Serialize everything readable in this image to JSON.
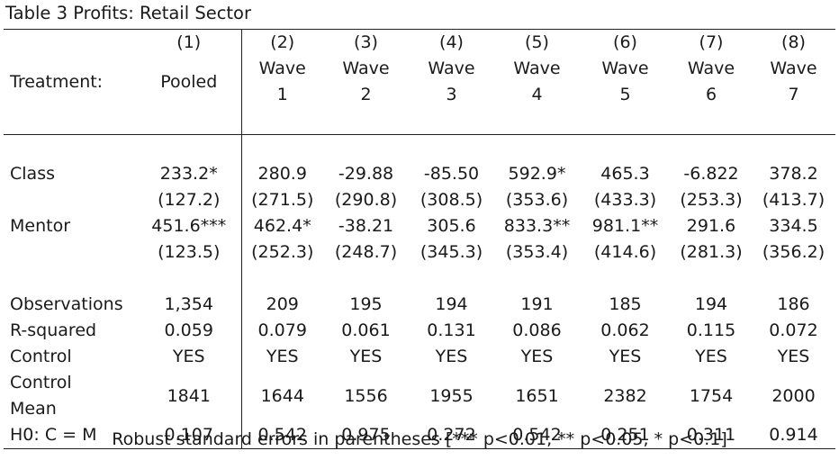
{
  "title": "Table 3 Profits: Retail Sector",
  "column_numbers": [
    "(1)",
    "(2)",
    "(3)",
    "(4)",
    "(5)",
    "(6)",
    "(7)",
    "(8)"
  ],
  "treatment_label": "Treatment:",
  "column_names_line1": [
    "",
    "Wave",
    "Wave",
    "Wave",
    "Wave",
    "Wave",
    "Wave",
    "Wave"
  ],
  "column_names_line2": [
    "Pooled",
    "1",
    "2",
    "3",
    "4",
    "5",
    "6",
    "7"
  ],
  "rows": {
    "class": {
      "label": "Class",
      "coef": [
        "233.2*",
        "280.9",
        "-29.88",
        "-85.50",
        "592.9*",
        "465.3",
        "-6.822",
        "378.2"
      ],
      "se": [
        "(127.2)",
        "(271.5)",
        "(290.8)",
        "(308.5)",
        "(353.6)",
        "(433.3)",
        "(253.3)",
        "(413.7)"
      ]
    },
    "mentor": {
      "label": "Mentor",
      "coef": [
        "451.6***",
        "462.4*",
        "-38.21",
        "305.6",
        "833.3**",
        "981.1**",
        "291.6",
        "334.5"
      ],
      "se": [
        "(123.5)",
        "(252.3)",
        "(248.7)",
        "(345.3)",
        "(353.4)",
        "(414.6)",
        "(281.3)",
        "(356.2)"
      ]
    },
    "observations": {
      "label": "Observations",
      "values": [
        "1,354",
        "209",
        "195",
        "194",
        "191",
        "185",
        "194",
        "186"
      ]
    },
    "r_squared": {
      "label": "R-squared",
      "values": [
        "0.059",
        "0.079",
        "0.061",
        "0.131",
        "0.086",
        "0.062",
        "0.115",
        "0.072"
      ]
    },
    "control": {
      "label": "Control",
      "values": [
        "YES",
        "YES",
        "YES",
        "YES",
        "YES",
        "YES",
        "YES",
        "YES"
      ]
    },
    "control_mean": {
      "label_line1": "Control",
      "label_line2": "Mean",
      "values": [
        "1841",
        "1644",
        "1556",
        "1955",
        "1651",
        "2382",
        "1754",
        "2000"
      ]
    },
    "h0": {
      "label": "H0: C = M",
      "values": [
        "0.107",
        "0.542",
        "0.975",
        "0.272",
        "0.542",
        "0.251",
        "0.311",
        "0.914"
      ]
    }
  },
  "footnote": "Robust standard errors in parentheses [*** p<0.01, ** p<0.05, * p<0.1]"
}
